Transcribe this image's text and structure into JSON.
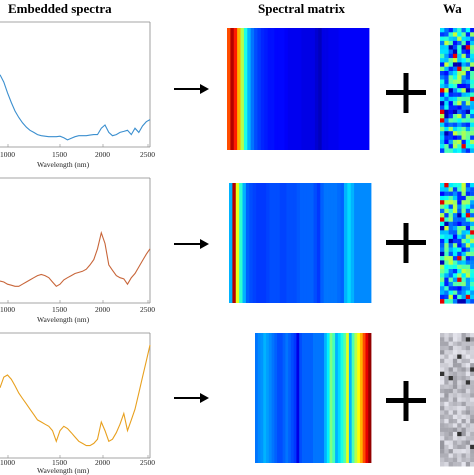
{
  "headers": {
    "embedded": "Embedded spectra",
    "matrix": "Spectral matrix",
    "cut": "Wa"
  },
  "axis": {
    "xlabel": "Wavelength (nm)",
    "ticks": [
      "1000",
      "1500",
      "2000",
      "2500"
    ]
  },
  "rows": [
    {
      "line_color": "#3b8fcf",
      "spectrum": [
        0.62,
        0.55,
        0.45,
        0.36,
        0.28,
        0.22,
        0.17,
        0.13,
        0.1,
        0.08,
        0.06,
        0.05,
        0.045,
        0.04,
        0.04,
        0.04,
        0.045,
        0.03,
        0.01,
        0.025,
        0.04,
        0.05,
        0.05,
        0.05,
        0.055,
        0.06,
        0.06,
        0.12,
        0.15,
        0.08,
        0.05,
        0.06,
        0.08,
        0.09,
        0.1,
        0.06,
        0.12,
        0.08,
        0.14,
        0.18,
        0.2
      ],
      "matrix_cols": [
        0.8,
        0.95,
        0.85,
        0.7,
        0.55,
        0.4,
        0.3,
        0.24,
        0.2,
        0.18,
        0.16,
        0.15,
        0.14,
        0.14,
        0.13,
        0.13,
        0.13,
        0.12,
        0.11,
        0.11,
        0.11,
        0.11,
        0.1,
        0.1,
        0.1,
        0.1,
        0.08,
        0.06,
        0.1,
        0.1,
        0.11,
        0.11,
        0.11,
        0.12,
        0.12,
        0.12,
        0.12,
        0.12,
        0.12,
        0.12,
        0.12,
        0.12
      ],
      "noise_gray": false
    },
    {
      "line_color": "#c8663a",
      "spectrum": [
        0.15,
        0.14,
        0.12,
        0.11,
        0.1,
        0.1,
        0.12,
        0.14,
        0.16,
        0.18,
        0.2,
        0.21,
        0.2,
        0.18,
        0.14,
        0.1,
        0.12,
        0.16,
        0.18,
        0.2,
        0.22,
        0.23,
        0.24,
        0.26,
        0.3,
        0.35,
        0.45,
        0.6,
        0.5,
        0.3,
        0.25,
        0.2,
        0.18,
        0.17,
        0.12,
        0.18,
        0.22,
        0.28,
        0.34,
        0.4,
        0.45
      ],
      "matrix_cols": [
        0.3,
        0.95,
        0.6,
        0.42,
        0.3,
        0.22,
        0.2,
        0.19,
        0.18,
        0.18,
        0.18,
        0.19,
        0.2,
        0.2,
        0.2,
        0.19,
        0.19,
        0.2,
        0.2,
        0.2,
        0.21,
        0.22,
        0.22,
        0.22,
        0.22,
        0.2,
        0.18,
        0.22,
        0.24,
        0.24,
        0.24,
        0.24,
        0.23,
        0.22,
        0.3,
        0.34,
        0.3,
        0.26,
        0.26,
        0.26,
        0.26,
        0.26
      ],
      "noise_gray": false
    },
    {
      "line_color": "#e8a01e",
      "spectrum": [
        0.6,
        0.7,
        0.72,
        0.68,
        0.62,
        0.55,
        0.5,
        0.45,
        0.4,
        0.35,
        0.3,
        0.28,
        0.26,
        0.24,
        0.2,
        0.1,
        0.2,
        0.24,
        0.22,
        0.18,
        0.14,
        0.1,
        0.08,
        0.06,
        0.06,
        0.08,
        0.12,
        0.28,
        0.2,
        0.1,
        0.12,
        0.18,
        0.26,
        0.36,
        0.2,
        0.3,
        0.4,
        0.55,
        0.7,
        0.85,
        1.0
      ],
      "matrix_cols": [
        0.24,
        0.26,
        0.27,
        0.3,
        0.28,
        0.26,
        0.24,
        0.22,
        0.2,
        0.2,
        0.22,
        0.24,
        0.22,
        0.2,
        0.18,
        0.1,
        0.2,
        0.22,
        0.22,
        0.22,
        0.22,
        0.24,
        0.24,
        0.24,
        0.24,
        0.3,
        0.36,
        0.5,
        0.44,
        0.3,
        0.34,
        0.4,
        0.46,
        0.6,
        0.3,
        0.45,
        0.55,
        0.62,
        0.7,
        0.8,
        0.9,
        0.98
      ],
      "noise_gray": true
    }
  ]
}
